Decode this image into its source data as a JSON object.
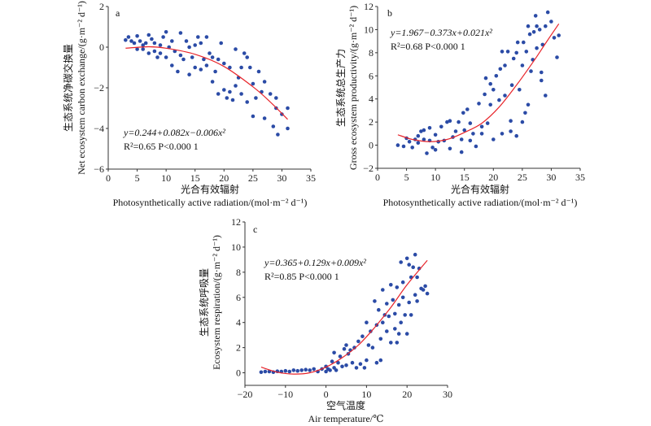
{
  "colors": {
    "points": "#2b4ba6",
    "fit_line": "#e8242a",
    "axis": "#333333"
  },
  "chart_data": [
    {
      "type": "scatter",
      "panel_label": "a",
      "ylabel_cn": "生态系统净碳交换量",
      "ylabel_en": "Net ecosystem carbon exchange/(g·m⁻² d⁻¹)",
      "xlabel_cn": "光合有效辐射",
      "xlabel_en": "Photosynthetically active radiation/(mol·m⁻² d⁻¹)",
      "equation": "y=0.244+0.082x−0.006x²",
      "stats": "R²=0.65  P<0.000 1",
      "xlim": [
        0,
        35
      ],
      "ylim": [
        -6,
        2
      ],
      "xticks": [
        0,
        5,
        10,
        15,
        20,
        25,
        30,
        35
      ],
      "yticks": [
        -6,
        -4,
        -2,
        0,
        2
      ],
      "fit_line": [
        [
          3,
          -0.05
        ],
        [
          7,
          0.02
        ],
        [
          10,
          -0.05
        ],
        [
          15,
          -0.35
        ],
        [
          20,
          -0.95
        ],
        [
          25,
          -1.95
        ],
        [
          28,
          -2.7
        ],
        [
          31,
          -3.55
        ]
      ],
      "points": [
        [
          3,
          0.35
        ],
        [
          3.5,
          0.5
        ],
        [
          4,
          0.3
        ],
        [
          4.5,
          0.2
        ],
        [
          5,
          0.55
        ],
        [
          5,
          -0.1
        ],
        [
          5.5,
          0.3
        ],
        [
          6,
          0.1
        ],
        [
          6,
          -0.1
        ],
        [
          6.5,
          0.2
        ],
        [
          7,
          0.6
        ],
        [
          7,
          -0.3
        ],
        [
          7.5,
          0.4
        ],
        [
          8,
          -0.2
        ],
        [
          8,
          0.2
        ],
        [
          8.5,
          -0.5
        ],
        [
          9,
          0.1
        ],
        [
          9,
          -0.3
        ],
        [
          9.5,
          0.5
        ],
        [
          10,
          0.75
        ],
        [
          10,
          -0.5
        ],
        [
          10.5,
          0
        ],
        [
          11,
          -0.9
        ],
        [
          11,
          0.3
        ],
        [
          11.5,
          -0.2
        ],
        [
          12,
          -1.2
        ],
        [
          12.5,
          0.7
        ],
        [
          12.5,
          -0.4
        ],
        [
          13,
          -0.6
        ],
        [
          13.5,
          0.3
        ],
        [
          14,
          -1.35
        ],
        [
          14,
          0
        ],
        [
          14.5,
          -0.5
        ],
        [
          15,
          0.1
        ],
        [
          15,
          -1
        ],
        [
          15.5,
          0.5
        ],
        [
          16,
          -1.1
        ],
        [
          16,
          0.2
        ],
        [
          16.5,
          -0.6
        ],
        [
          17,
          0.5
        ],
        [
          17,
          -0.9
        ],
        [
          17.5,
          -0.3
        ],
        [
          18,
          -1.7
        ],
        [
          18,
          -0.5
        ],
        [
          18.5,
          -1.2
        ],
        [
          19,
          -2.3
        ],
        [
          19,
          -0.6
        ],
        [
          19.5,
          0.2
        ],
        [
          20,
          -2.1
        ],
        [
          20,
          -0.8
        ],
        [
          20.5,
          -2.5
        ],
        [
          21,
          -1.0
        ],
        [
          21,
          -2.2
        ],
        [
          21.5,
          -2.6
        ],
        [
          22,
          -0.1
        ],
        [
          22,
          -1.9
        ],
        [
          22.5,
          -1.5
        ],
        [
          23,
          -1.0
        ],
        [
          23,
          -2.3
        ],
        [
          23.5,
          -0.3
        ],
        [
          24,
          -2.7
        ],
        [
          24,
          -0.5
        ],
        [
          24.5,
          -1.0
        ],
        [
          25,
          -3.4
        ],
        [
          25,
          -1.8
        ],
        [
          25.5,
          -2.5
        ],
        [
          26,
          -1.2
        ],
        [
          26.5,
          -2.2
        ],
        [
          27,
          -3.5
        ],
        [
          27,
          -1.7
        ],
        [
          28,
          -2.3
        ],
        [
          28.5,
          -3.9
        ],
        [
          29,
          -2.5
        ],
        [
          29.3,
          -4.3
        ],
        [
          29,
          -3.0
        ],
        [
          30,
          -3.3
        ],
        [
          31,
          -3.0
        ],
        [
          31,
          -4.0
        ]
      ]
    },
    {
      "type": "scatter",
      "panel_label": "b",
      "ylabel_cn": "生态系统总生产力",
      "ylabel_en": "Gross ecosystem productivity/(g·m⁻² d⁻¹)",
      "xlabel_cn": "光合有效辐射",
      "xlabel_en": "Photosynthetically active radiation/(mol·m⁻² d⁻¹)",
      "equation": "y=1.967−0.373x+0.021x²",
      "stats": "R²=0.68  P<0.000 1",
      "xlim": [
        0,
        35
      ],
      "ylim": [
        -2,
        12
      ],
      "xticks": [
        0,
        5,
        10,
        15,
        20,
        25,
        30,
        35
      ],
      "yticks": [
        -2,
        0,
        2,
        4,
        6,
        8,
        10,
        12
      ],
      "fit_line": [
        [
          3.5,
          0.9
        ],
        [
          6,
          0.5
        ],
        [
          9,
          0.3
        ],
        [
          12,
          0.5
        ],
        [
          15,
          1.1
        ],
        [
          18,
          1.9
        ],
        [
          21,
          3.3
        ],
        [
          24,
          5.2
        ],
        [
          27,
          7.3
        ],
        [
          29,
          8.8
        ],
        [
          31.3,
          10.5
        ]
      ],
      "points": [
        [
          3.5,
          0
        ],
        [
          4.5,
          -0.1
        ],
        [
          5,
          0.6
        ],
        [
          5.5,
          0.3
        ],
        [
          6,
          -0.2
        ],
        [
          6.5,
          0.5
        ],
        [
          7,
          0.8
        ],
        [
          7,
          0.2
        ],
        [
          7.5,
          1.2
        ],
        [
          8,
          0.5
        ],
        [
          8,
          1.3
        ],
        [
          8.5,
          -0.7
        ],
        [
          9,
          0.4
        ],
        [
          9,
          1.5
        ],
        [
          9.5,
          -0.2
        ],
        [
          10,
          0.9
        ],
        [
          10,
          -0.4
        ],
        [
          10.5,
          0.3
        ],
        [
          11,
          1.6
        ],
        [
          11.5,
          0.4
        ],
        [
          12,
          2.0
        ],
        [
          12.5,
          -0.3
        ],
        [
          12.5,
          2.1
        ],
        [
          13,
          0.7
        ],
        [
          13.5,
          1.2
        ],
        [
          14,
          2.0
        ],
        [
          14.5,
          -0.6
        ],
        [
          14.5,
          0.5
        ],
        [
          14.8,
          2.8
        ],
        [
          15,
          1.3
        ],
        [
          15.5,
          3.1
        ],
        [
          16,
          0.4
        ],
        [
          16,
          1.9
        ],
        [
          16.5,
          1.0
        ],
        [
          17,
          -0.1
        ],
        [
          17.5,
          3.6
        ],
        [
          18,
          1.0
        ],
        [
          18,
          1.6
        ],
        [
          18.5,
          4.4
        ],
        [
          18.7,
          5.8
        ],
        [
          19,
          1.9
        ],
        [
          19.5,
          3.5
        ],
        [
          19.5,
          5.3
        ],
        [
          20,
          0.5
        ],
        [
          20,
          4.8
        ],
        [
          20.5,
          6.0
        ],
        [
          21,
          3.9
        ],
        [
          21.2,
          6.6
        ],
        [
          21.5,
          8.1
        ],
        [
          21.5,
          1.0
        ],
        [
          22,
          6.9
        ],
        [
          22,
          4.3
        ],
        [
          22.5,
          8.1
        ],
        [
          23,
          1.2
        ],
        [
          23,
          2.1
        ],
        [
          23.2,
          5.2
        ],
        [
          23.5,
          7.5
        ],
        [
          24,
          8.0
        ],
        [
          24,
          0.8
        ],
        [
          24.2,
          8.9
        ],
        [
          24.5,
          4.8
        ],
        [
          25,
          2.0
        ],
        [
          25,
          6.9
        ],
        [
          25.2,
          8.9
        ],
        [
          25.5,
          2.8
        ],
        [
          25.7,
          8.1
        ],
        [
          26,
          3.5
        ],
        [
          26,
          10.3
        ],
        [
          26.3,
          9.6
        ],
        [
          26.5,
          6.4
        ],
        [
          26.8,
          7.4
        ],
        [
          27,
          9.8
        ],
        [
          27.3,
          11.2
        ],
        [
          27.5,
          10.3
        ],
        [
          27.5,
          8.4
        ],
        [
          28,
          10.0
        ],
        [
          28.3,
          5.6
        ],
        [
          28.5,
          8.7
        ],
        [
          28.3,
          6.3
        ],
        [
          29,
          10.3
        ],
        [
          29,
          4.3
        ],
        [
          29.4,
          11.5
        ],
        [
          30,
          10.7
        ],
        [
          30.5,
          9.3
        ],
        [
          31,
          7.6
        ],
        [
          31.3,
          9.5
        ]
      ]
    },
    {
      "type": "scatter",
      "panel_label": "c",
      "ylabel_cn": "生态系统呼吸量",
      "ylabel_en": "Ecosystem respiration/(g·m⁻² d⁻¹)",
      "xlabel_cn": "空气温度",
      "xlabel_en": "Air temperature/℃",
      "equation": "y=0.365+0.129x+0.009x²",
      "stats": "R²=0.85  P<0.000 1",
      "xlim": [
        -20,
        30
      ],
      "ylim": [
        -1,
        12
      ],
      "xticks": [
        -20,
        -10,
        0,
        10,
        20,
        30
      ],
      "yticks": [
        0,
        2,
        4,
        6,
        8,
        10,
        12
      ],
      "fit_line": [
        [
          -16,
          0.45
        ],
        [
          -12,
          0.05
        ],
        [
          -8,
          -0.1
        ],
        [
          -4,
          0
        ],
        [
          0,
          0.45
        ],
        [
          4,
          1.2
        ],
        [
          8,
          2.2
        ],
        [
          12,
          3.6
        ],
        [
          16,
          5.2
        ],
        [
          20,
          7.0
        ],
        [
          25,
          8.95
        ]
      ],
      "points": [
        [
          -16,
          0.05
        ],
        [
          -15,
          0.1
        ],
        [
          -14,
          0.1
        ],
        [
          -13,
          0.05
        ],
        [
          -12,
          0.12
        ],
        [
          -11,
          0.1
        ],
        [
          -10,
          0.15
        ],
        [
          -9,
          0.1
        ],
        [
          -8,
          0.2
        ],
        [
          -7,
          0.15
        ],
        [
          -6,
          0.2
        ],
        [
          -5,
          0.25
        ],
        [
          -4,
          0.2
        ],
        [
          -3,
          0.3
        ],
        [
          -2,
          0.1
        ],
        [
          -1,
          0.3
        ],
        [
          0,
          0.5
        ],
        [
          0,
          0.1
        ],
        [
          0.5,
          0.3
        ],
        [
          1,
          0.2
        ],
        [
          1.5,
          0.9
        ],
        [
          2,
          1.6
        ],
        [
          2,
          0.4
        ],
        [
          2.5,
          0.2
        ],
        [
          3,
          0.8
        ],
        [
          3.5,
          1.3
        ],
        [
          4,
          0.5
        ],
        [
          4.5,
          1.9
        ],
        [
          5,
          2.2
        ],
        [
          5,
          0.6
        ],
        [
          5.5,
          1.5
        ],
        [
          6,
          1.8
        ],
        [
          6.5,
          0.8
        ],
        [
          7,
          2.0
        ],
        [
          7.5,
          0.4
        ],
        [
          8,
          2.5
        ],
        [
          8.5,
          0.7
        ],
        [
          9,
          2.9
        ],
        [
          9.5,
          0.4
        ],
        [
          10,
          4.0
        ],
        [
          10,
          1.0
        ],
        [
          10.5,
          2.2
        ],
        [
          11,
          3.3
        ],
        [
          11.5,
          2.0
        ],
        [
          12,
          5.7
        ],
        [
          12.5,
          3.8
        ],
        [
          12.5,
          0.8
        ],
        [
          13,
          5.0
        ],
        [
          13.5,
          1.0
        ],
        [
          13.5,
          2.7
        ],
        [
          14,
          6.6
        ],
        [
          14,
          4.0
        ],
        [
          14.5,
          4.6
        ],
        [
          15,
          3.3
        ],
        [
          15,
          5.5
        ],
        [
          15.5,
          4.5
        ],
        [
          16,
          7.0
        ],
        [
          16,
          2.4
        ],
        [
          16.5,
          5.8
        ],
        [
          17,
          4.7
        ],
        [
          17,
          3.5
        ],
        [
          17.5,
          6.8
        ],
        [
          17.5,
          2.4
        ],
        [
          18,
          5.4
        ],
        [
          18,
          3.1
        ],
        [
          18.5,
          8.8
        ],
        [
          18.5,
          4.0
        ],
        [
          19,
          6.0
        ],
        [
          19,
          7.2
        ],
        [
          19.5,
          4.6
        ],
        [
          20,
          9.1
        ],
        [
          20,
          3.1
        ],
        [
          20.5,
          8.6
        ],
        [
          20.5,
          5.6
        ],
        [
          21,
          7.6
        ],
        [
          21,
          4.6
        ],
        [
          21.5,
          8.4
        ],
        [
          22,
          9.4
        ],
        [
          22,
          6.2
        ],
        [
          22.5,
          7.6
        ],
        [
          22.5,
          5.7
        ],
        [
          23,
          8.3
        ],
        [
          23.5,
          6.7
        ],
        [
          24,
          6.6
        ],
        [
          24.5,
          6.9
        ],
        [
          25,
          6.3
        ]
      ]
    }
  ]
}
